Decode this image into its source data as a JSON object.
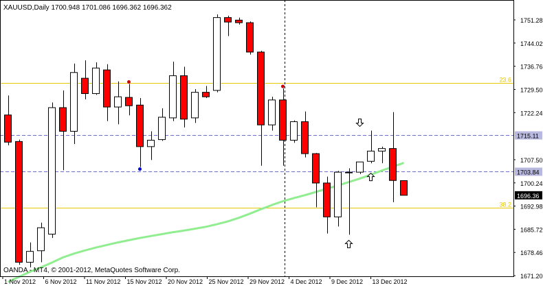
{
  "header": {
    "symbol_line": "XAUUSD,Daily  1700.948 1701.086 1696.362 1696.362"
  },
  "footer": {
    "copyright": "OANDA - MT4, © 2001-2012, MetaQuotes Software Corp."
  },
  "colors": {
    "bull_body": "#ffffff",
    "bear_body": "#ff0000",
    "outline": "#000000",
    "ma_line": "#90ee90",
    "fib_line": "#e6c700",
    "dash_line": "#6a6ac8",
    "fractal_up": "#cc0000",
    "fractal_down": "#0000cc"
  },
  "chart_data": {
    "type": "candlestick",
    "symbol": "XAUUSD",
    "timeframe": "Daily",
    "ylim": [
      1671.0,
      1757.5
    ],
    "y_ticks": [
      1751.28,
      1744.02,
      1736.76,
      1729.5,
      1722.24,
      1707.5,
      1700.24,
      1692.98,
      1685.72,
      1678.46,
      1671.2
    ],
    "x_labels": [
      "1 Nov 2012",
      "6 Nov 2012",
      "11 Nov 2012",
      "15 Nov 2012",
      "20 Nov 2012",
      "25 Nov 2012",
      "29 Nov 2012",
      "4 Dec 2012",
      "9 Dec 2012",
      "13 Dec 2012"
    ],
    "candles": [
      {
        "o": 1721.5,
        "h": 1727.6,
        "l": 1712.0,
        "c": 1713.0
      },
      {
        "o": 1713.2,
        "h": 1713.8,
        "l": 1674.6,
        "c": 1675.4
      },
      {
        "o": 1675.4,
        "h": 1681.6,
        "l": 1673.8,
        "c": 1678.8
      },
      {
        "o": 1679.0,
        "h": 1687.8,
        "l": 1675.4,
        "c": 1686.2
      },
      {
        "o": 1684.2,
        "h": 1725.4,
        "l": 1683.0,
        "c": 1723.8
      },
      {
        "o": 1723.8,
        "h": 1729.2,
        "l": 1704.2,
        "c": 1716.4
      },
      {
        "o": 1716.4,
        "h": 1737.6,
        "l": 1712.4,
        "c": 1734.8
      },
      {
        "o": 1733.0,
        "h": 1738.6,
        "l": 1726.4,
        "c": 1728.2
      },
      {
        "o": 1728.2,
        "h": 1738.0,
        "l": 1727.8,
        "c": 1736.2
      },
      {
        "o": 1735.6,
        "h": 1737.4,
        "l": 1719.6,
        "c": 1724.0
      },
      {
        "o": 1724.0,
        "h": 1732.0,
        "l": 1718.6,
        "c": 1727.2
      },
      {
        "o": 1727.0,
        "h": 1731.2,
        "l": 1721.4,
        "c": 1724.4
      },
      {
        "o": 1724.6,
        "h": 1726.8,
        "l": 1705.2,
        "c": 1711.6
      },
      {
        "o": 1711.6,
        "h": 1716.4,
        "l": 1707.4,
        "c": 1713.6
      },
      {
        "o": 1713.8,
        "h": 1723.6,
        "l": 1713.4,
        "c": 1720.8
      },
      {
        "o": 1720.6,
        "h": 1738.2,
        "l": 1719.6,
        "c": 1733.8
      },
      {
        "o": 1733.8,
        "h": 1736.6,
        "l": 1717.6,
        "c": 1720.2
      },
      {
        "o": 1720.6,
        "h": 1729.6,
        "l": 1719.0,
        "c": 1728.6
      },
      {
        "o": 1728.6,
        "h": 1730.6,
        "l": 1726.8,
        "c": 1727.2
      },
      {
        "o": 1729.2,
        "h": 1753.0,
        "l": 1728.6,
        "c": 1752.0
      },
      {
        "o": 1752.0,
        "h": 1752.6,
        "l": 1746.2,
        "c": 1750.6
      },
      {
        "o": 1751.2,
        "h": 1752.0,
        "l": 1749.8,
        "c": 1750.4
      },
      {
        "o": 1750.4,
        "h": 1750.8,
        "l": 1740.4,
        "c": 1741.2
      },
      {
        "o": 1741.2,
        "h": 1741.6,
        "l": 1705.6,
        "c": 1718.4
      },
      {
        "o": 1718.4,
        "h": 1727.2,
        "l": 1716.6,
        "c": 1726.2
      },
      {
        "o": 1726.2,
        "h": 1729.8,
        "l": 1705.6,
        "c": 1713.6
      },
      {
        "o": 1713.6,
        "h": 1719.8,
        "l": 1712.8,
        "c": 1719.4
      },
      {
        "o": 1719.4,
        "h": 1722.6,
        "l": 1708.2,
        "c": 1709.4
      },
      {
        "o": 1709.4,
        "h": 1709.6,
        "l": 1692.6,
        "c": 1700.2
      },
      {
        "o": 1700.2,
        "h": 1702.2,
        "l": 1684.4,
        "c": 1689.6
      },
      {
        "o": 1689.6,
        "h": 1704.0,
        "l": 1686.6,
        "c": 1703.6
      },
      {
        "o": 1703.4,
        "h": 1704.8,
        "l": 1684.0,
        "c": 1703.6
      },
      {
        "o": 1703.6,
        "h": 1706.4,
        "l": 1703.0,
        "c": 1706.8
      },
      {
        "o": 1707.0,
        "h": 1716.6,
        "l": 1706.4,
        "c": 1710.2
      },
      {
        "o": 1710.2,
        "h": 1711.6,
        "l": 1706.4,
        "c": 1711.0
      },
      {
        "o": 1711.0,
        "h": 1722.4,
        "l": 1694.2,
        "c": 1701.0
      },
      {
        "o": 1700.948,
        "h": 1701.086,
        "l": 1696.362,
        "c": 1696.362
      }
    ],
    "moving_average": [
      1669.2,
      1670.8,
      1672.4,
      1673.8,
      1675.3,
      1676.9,
      1678.1,
      1679.1,
      1680.0,
      1680.8,
      1681.6,
      1682.3,
      1683.0,
      1683.6,
      1684.2,
      1684.8,
      1685.3,
      1685.9,
      1686.5,
      1687.3,
      1688.2,
      1689.3,
      1690.6,
      1692.0,
      1693.3,
      1694.5,
      1695.5,
      1696.4,
      1697.4,
      1698.4,
      1699.4,
      1700.5,
      1701.6,
      1702.8,
      1704.1,
      1705.3,
      1706.5
    ],
    "horizontal_levels": [
      {
        "price": 1731.6,
        "label": "23.6",
        "style": "fib"
      },
      {
        "price": 1715.11,
        "label": "1715.11",
        "style": "dash"
      },
      {
        "price": 1703.84,
        "label": "1703.84",
        "style": "dash"
      },
      {
        "price": 1692.5,
        "label": "38.2",
        "style": "fib"
      }
    ],
    "current_price_label": "1696.36",
    "vertical_dashed_after_candle": 25,
    "fractals": [
      {
        "candle": 11,
        "type": "up"
      },
      {
        "candle": 12,
        "type": "down"
      },
      {
        "candle": 25,
        "type": "up"
      }
    ],
    "arrows": [
      {
        "candle": 32,
        "direction": "down",
        "price": 1719.2
      },
      {
        "candle": 33,
        "direction": "up",
        "price": 1702.0
      },
      {
        "candle": 31,
        "direction": "up",
        "price": 1681.0
      }
    ]
  }
}
